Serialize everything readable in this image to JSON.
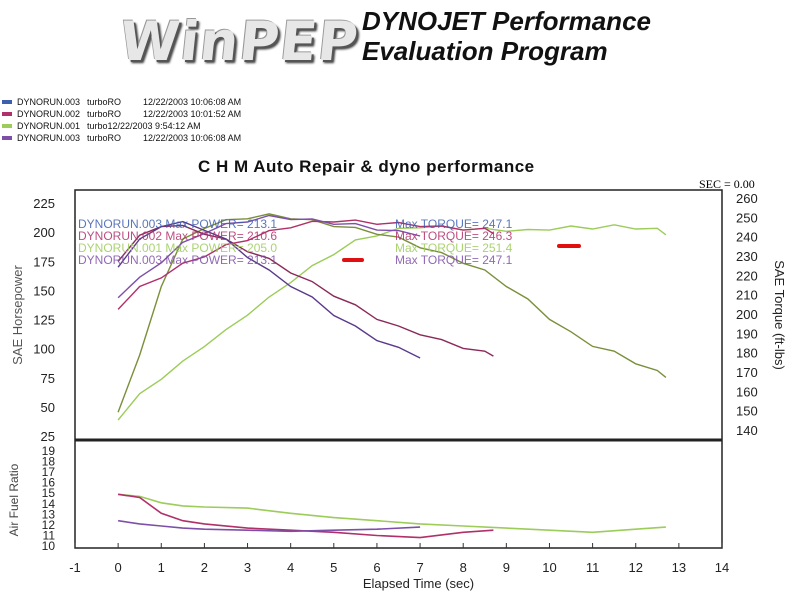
{
  "header": {
    "logo_text": "WinPEP",
    "heading_line1": "DYNOJET Performance",
    "heading_line2": "Evaluation Program"
  },
  "legend": [
    {
      "run": "DYNORUN.003",
      "dyno": "turboRO",
      "date": "12/22/2003 10:06:08 AM",
      "color": "#3d5fb0"
    },
    {
      "run": "DYNORUN.002",
      "dyno": "turboRO",
      "date": "12/22/2003 10:01:52 AM",
      "color": "#b0306a"
    },
    {
      "run": "DYNORUN.001",
      "dyno": "turbo",
      "date": "12/22/2003 9:54:12 AM",
      "color": "#9ccc5a"
    },
    {
      "run": "DYNORUN.003",
      "dyno": "turboRO",
      "date": "12/22/2003 10:06:08 AM",
      "color": "#7e4fa8"
    }
  ],
  "chart_data": {
    "type": "line",
    "title": "C H M Auto Repair & dyno performance",
    "sec_readout": "SEC = 0.00",
    "xlabel": "Elapsed Time (sec)",
    "x_ticks": [
      "-1",
      "0",
      "1",
      "2",
      "3",
      "4",
      "5",
      "6",
      "7",
      "8",
      "9",
      "10",
      "11",
      "12",
      "13",
      "14"
    ],
    "xlim": [
      -1,
      14
    ],
    "top_panel": {
      "ylabel_left": "SAE Horsepower",
      "ylabel_right": "SAE Torque (ft-lbs)",
      "left_ticks": [
        "25",
        "50",
        "75",
        "100",
        "125",
        "150",
        "175",
        "200",
        "225"
      ],
      "right_ticks": [
        "140",
        "150",
        "160",
        "170",
        "180",
        "190",
        "200",
        "210",
        "220",
        "230",
        "240",
        "250",
        "260"
      ],
      "annotations": [
        {
          "text": "DYNORUN.003   Max POWER= 213.1",
          "torque": "Max TORQUE= 247.1",
          "color": "#3d5fb0"
        },
        {
          "text": "DYNORUN.002   Max POWER= 210.6",
          "torque": "Max TORQUE= 246.3",
          "color": "#b0306a"
        },
        {
          "text": "DYNORUN.001   Max POWER= 205.0",
          "torque": "Max TORQUE= 251.4",
          "color": "#9ccc5a"
        },
        {
          "text": "DYNORUN.003   Max POWER= 213.1",
          "torque": "Max TORQUE= 247.1",
          "color": "#7e4fa8"
        }
      ],
      "series": [
        {
          "name": "DYNORUN.001 HP",
          "color": "#9ccc5a",
          "x": [
            0,
            0.5,
            1,
            1.5,
            2,
            2.5,
            3,
            3.5,
            4,
            4.5,
            5,
            5.5,
            6,
            6.5,
            7,
            7.5,
            8,
            8.5,
            9,
            9.5,
            10,
            10.5,
            11,
            11.5,
            12,
            12.5,
            12.7
          ],
          "y": [
            40,
            60,
            75,
            88,
            103,
            115,
            130,
            143,
            158,
            170,
            182,
            192,
            198,
            202,
            205,
            204,
            203,
            202,
            202,
            201,
            203,
            204,
            204,
            205,
            204,
            202,
            199
          ]
        },
        {
          "name": "DYNORUN.001 Torque",
          "color": "#7a8f3a",
          "x": [
            0,
            0.5,
            1,
            1.5,
            2,
            2.5,
            3,
            3.5,
            4,
            4.5,
            5,
            5.5,
            6,
            6.5,
            7,
            7.5,
            8,
            8.5,
            9,
            9.5,
            10,
            10.5,
            11,
            11.5,
            12,
            12.5,
            12.7
          ],
          "y": [
            150,
            178,
            215,
            238,
            245,
            248,
            250,
            251,
            250,
            248,
            246,
            244,
            242,
            239,
            235,
            231,
            227,
            222,
            215,
            207,
            198,
            190,
            184,
            180,
            175,
            170,
            168
          ]
        },
        {
          "name": "DYNORUN.002 HP",
          "color": "#b0306a",
          "x": [
            0,
            0.5,
            1,
            1.5,
            2,
            2.5,
            3,
            3.5,
            4,
            4.5,
            5,
            5.5,
            6,
            6.5,
            7,
            7.5,
            8,
            8.5,
            8.7
          ],
          "y": [
            135,
            152,
            162,
            172,
            180,
            188,
            194,
            200,
            205,
            208,
            210,
            209,
            208,
            207,
            206,
            204,
            203,
            202,
            200
          ]
        },
        {
          "name": "DYNORUN.002 Torque",
          "color": "#8a2a5a",
          "x": [
            0,
            0.5,
            1,
            1.5,
            2,
            2.5,
            3,
            3.5,
            4,
            4.5,
            5,
            5.5,
            6,
            6.5,
            7,
            7.5,
            8,
            8.5,
            8.7
          ],
          "y": [
            228,
            240,
            246,
            245,
            242,
            238,
            233,
            228,
            222,
            216,
            210,
            204,
            198,
            193,
            190,
            186,
            183,
            180,
            179
          ]
        },
        {
          "name": "DYNORUN.003 HP",
          "color": "#7e4fa8",
          "x": [
            0,
            0.5,
            1,
            1.5,
            2,
            2.5,
            3,
            3.5,
            4,
            4.5,
            5,
            5.5,
            6,
            6.5,
            7
          ],
          "y": [
            145,
            160,
            175,
            190,
            200,
            206,
            210,
            213,
            212,
            210,
            208,
            206,
            203,
            200,
            198
          ]
        },
        {
          "name": "DYNORUN.003 Torque",
          "color": "#5a3a8a",
          "x": [
            0,
            0.5,
            1,
            1.5,
            2,
            2.5,
            3,
            3.5,
            4,
            4.5,
            5,
            5.5,
            6,
            6.5,
            7
          ],
          "y": [
            225,
            238,
            246,
            247,
            244,
            238,
            230,
            222,
            215,
            208,
            200,
            193,
            187,
            182,
            178
          ]
        }
      ]
    },
    "bottom_panel": {
      "ylabel": "Air Fuel Ratio",
      "ticks": [
        "10",
        "11",
        "12",
        "13",
        "14",
        "15",
        "16",
        "17",
        "18",
        "19"
      ],
      "series": [
        {
          "name": "DYNORUN.001 AFR",
          "color": "#9ccc5a",
          "x": [
            0,
            0.5,
            1,
            1.5,
            2,
            3,
            4,
            5,
            6,
            7,
            8,
            9,
            10,
            11,
            12,
            12.7
          ],
          "y": [
            14.8,
            14.6,
            14.0,
            13.7,
            13.6,
            13.5,
            13.0,
            12.6,
            12.3,
            12.0,
            11.8,
            11.6,
            11.4,
            11.2,
            11.5,
            11.7
          ]
        },
        {
          "name": "DYNORUN.002 AFR",
          "color": "#b0306a",
          "x": [
            0,
            0.5,
            1,
            1.5,
            2,
            3,
            4,
            5,
            6,
            7,
            8,
            8.7
          ],
          "y": [
            14.8,
            14.5,
            13.0,
            12.3,
            12.0,
            11.6,
            11.4,
            11.2,
            10.9,
            10.7,
            11.2,
            11.4
          ]
        },
        {
          "name": "DYNORUN.003 AFR",
          "color": "#7e4fa8",
          "x": [
            0,
            0.5,
            1,
            1.5,
            2,
            3,
            4,
            5,
            6,
            7
          ],
          "y": [
            12.3,
            12.0,
            11.8,
            11.6,
            11.5,
            11.4,
            11.3,
            11.4,
            11.5,
            11.7
          ]
        }
      ]
    }
  }
}
